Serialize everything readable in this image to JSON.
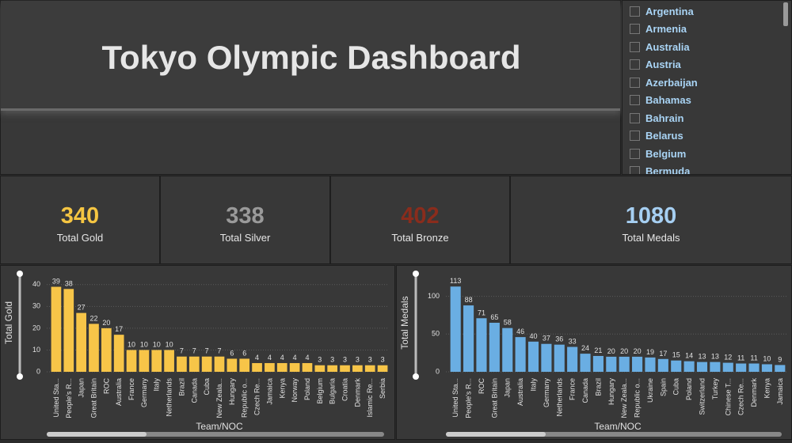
{
  "header": {
    "title": "Tokyo Olympic Dashboard"
  },
  "slicer": {
    "items": [
      "Argentina",
      "Armenia",
      "Australia",
      "Austria",
      "Azerbaijan",
      "Bahamas",
      "Bahrain",
      "Belarus",
      "Belgium",
      "Bermuda"
    ]
  },
  "kpis": [
    {
      "value": 340,
      "label": "Total Gold",
      "color": "#f5c542"
    },
    {
      "value": 338,
      "label": "Total Silver",
      "color": "#9a9a9a"
    },
    {
      "value": 402,
      "label": "Total Bronze",
      "color": "#8a2c1c"
    },
    {
      "value": 1080,
      "label": "Total Medals",
      "color": "#a6cff2"
    }
  ],
  "chart_data": [
    {
      "type": "bar",
      "y_label": "Total Gold",
      "x_label": "Team/NOC",
      "color": "#f7c548",
      "grid": true,
      "categories": [
        "United Sta...",
        "People's R...",
        "Japan",
        "Great Britain",
        "ROC",
        "Australia",
        "France",
        "Germany",
        "Italy",
        "Netherlands",
        "Brazil",
        "Canada",
        "Cuba",
        "New Zeala...",
        "Hungary",
        "Republic o...",
        "Czech Re...",
        "Jamaica",
        "Kenya",
        "Norway",
        "Poland",
        "Belgium",
        "Bulgaria",
        "Croatia",
        "Denmark",
        "Islamic Re...",
        "Serbia"
      ],
      "values": [
        39,
        38,
        27,
        22,
        20,
        17,
        10,
        10,
        10,
        10,
        7,
        7,
        7,
        7,
        6,
        6,
        4,
        4,
        4,
        4,
        4,
        3,
        3,
        3,
        3,
        3,
        3
      ],
      "ylim": [
        0,
        45
      ],
      "yticks": [
        0,
        10,
        20,
        30,
        40
      ]
    },
    {
      "type": "bar",
      "y_label": "Total Medals",
      "x_label": "Team/NOC",
      "color": "#6aaee3",
      "grid": true,
      "categories": [
        "United Sta...",
        "People's R...",
        "ROC",
        "Great Britain",
        "Japan",
        "Australia",
        "Italy",
        "Germany",
        "Netherlands",
        "France",
        "Canada",
        "Brazil",
        "Hungary",
        "New Zeala...",
        "Republic o...",
        "Ukraine",
        "Spain",
        "Cuba",
        "Poland",
        "Switzerland",
        "Turkey",
        "Chinese T...",
        "Czech Re...",
        "Denmark",
        "Kenya",
        "Jamaica"
      ],
      "values": [
        113,
        88,
        71,
        65,
        58,
        46,
        40,
        37,
        36,
        33,
        24,
        21,
        20,
        20,
        20,
        19,
        17,
        15,
        14,
        13,
        13,
        12,
        11,
        11,
        10,
        9
      ],
      "ylim": [
        0,
        130
      ],
      "yticks": [
        0,
        50,
        100
      ]
    }
  ]
}
